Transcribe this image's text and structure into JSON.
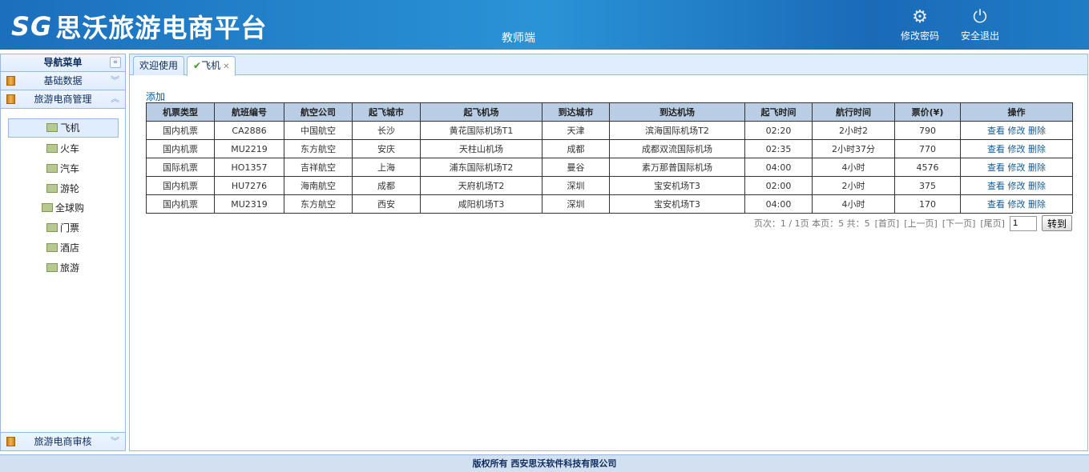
{
  "header": {
    "logo_mark": "SG",
    "title": "思沃旅游电商平台",
    "role": "教师端",
    "change_password": "修改密码",
    "logout": "安全退出"
  },
  "sidebar": {
    "title": "导航菜单",
    "sections": [
      "基础数据",
      "旅游电商管理",
      "旅游电商审核"
    ],
    "items": [
      "飞机",
      "火车",
      "汽车",
      "游轮",
      "全球购",
      "门票",
      "酒店",
      "旅游"
    ]
  },
  "tabs": [
    "欢迎使用",
    "飞机"
  ],
  "add_label": "添加",
  "table": {
    "headers": [
      "机票类型",
      "航班编号",
      "航空公司",
      "起飞城市",
      "起飞机场",
      "到达城市",
      "到达机场",
      "起飞时间",
      "航行时间",
      "票价(¥)",
      "操作"
    ],
    "rows": [
      [
        "国内机票",
        "CA2886",
        "中国航空",
        "长沙",
        "黄花国际机场T1",
        "天津",
        "滨海国际机场T2",
        "02:20",
        "2小时2",
        "790"
      ],
      [
        "国内机票",
        "MU2219",
        "东方航空",
        "安庆",
        "天柱山机场",
        "成都",
        "成都双流国际机场",
        "02:35",
        "2小时37分",
        "770"
      ],
      [
        "国际机票",
        "HO1357",
        "吉祥航空",
        "上海",
        "浦东国际机场T2",
        "曼谷",
        "素万那普国际机场",
        "04:00",
        "4小时",
        "4576"
      ],
      [
        "国内机票",
        "HU7276",
        "海南航空",
        "成都",
        "天府机场T2",
        "深圳",
        "宝安机场T3",
        "02:00",
        "2小时",
        "375"
      ],
      [
        "国内机票",
        "MU2319",
        "东方航空",
        "西安",
        "咸阳机场T3",
        "深圳",
        "宝安机场T3",
        "04:00",
        "4小时",
        "170"
      ]
    ],
    "actions": [
      "查看",
      "修改",
      "删除"
    ]
  },
  "pager": {
    "info": "页次：1 / 1页 本页：5 共：5",
    "first": "[首页]",
    "prev": "[上一页]",
    "next": "[下一页]",
    "last": "[尾页]",
    "page_value": "1",
    "go": "转到"
  },
  "footer": "版权所有 西安思沃软件科技有限公司"
}
